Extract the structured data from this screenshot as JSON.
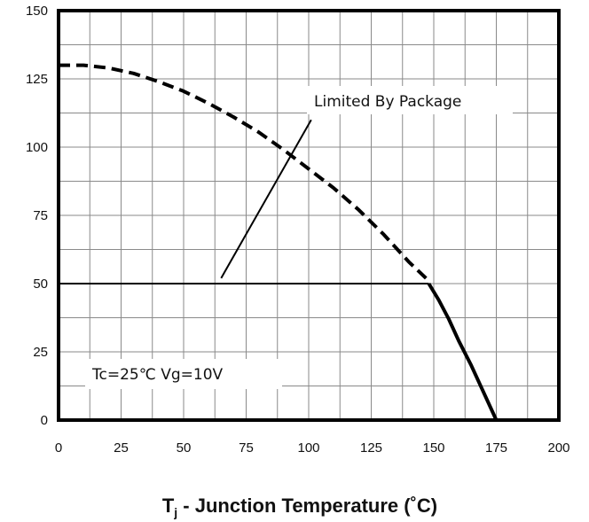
{
  "chart_data": {
    "type": "line",
    "xlabel_main": "T",
    "xlabel_sub": "j",
    "xlabel_rest": " - Junction Temperature (˚C)",
    "ylabel": "",
    "xlim": [
      0,
      200
    ],
    "ylim": [
      0,
      150
    ],
    "x_ticks": [
      "0",
      "25",
      "50",
      "75",
      "100",
      "125",
      "150",
      "175",
      "200"
    ],
    "y_ticks": [
      "0",
      "25",
      "50",
      "75",
      "100",
      "125",
      "150"
    ],
    "x_grid_step": 12.5,
    "y_grid_step": 12.5,
    "grid": true,
    "series": [
      {
        "style": "dashed",
        "x": [
          0,
          10,
          20,
          30,
          40,
          50,
          60,
          70,
          80,
          90,
          100,
          110,
          120,
          130,
          140,
          148
        ],
        "y": [
          130,
          130,
          129,
          127,
          124,
          120.5,
          116,
          111,
          105.5,
          99,
          92,
          85,
          77,
          68,
          58,
          51
        ]
      },
      {
        "style": "solid",
        "x": [
          148,
          152,
          156,
          160,
          165,
          170,
          175
        ],
        "y": [
          50,
          44,
          37,
          29,
          20,
          10,
          0
        ]
      },
      {
        "style": "solid",
        "x": [
          0,
          148
        ],
        "y": [
          50,
          50
        ]
      }
    ],
    "annotations": [
      {
        "text": "Limited By Package",
        "pointer_from": [
          101,
          110
        ],
        "pointer_to": [
          65,
          52
        ]
      },
      {
        "text": "Tc=25℃ Vg=10V"
      }
    ]
  }
}
